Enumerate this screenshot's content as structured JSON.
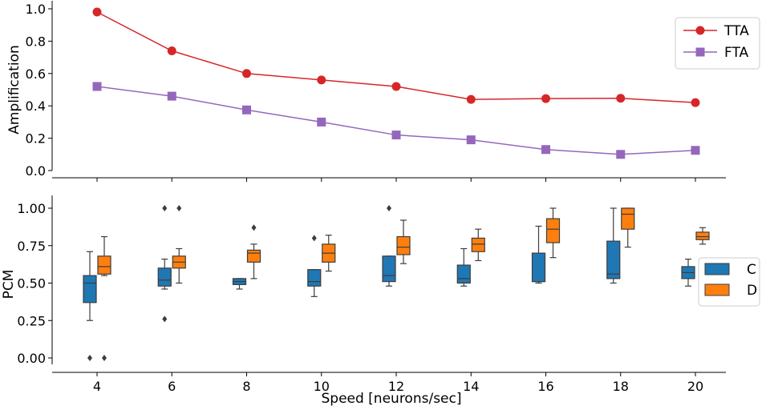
{
  "chart_data": [
    {
      "type": "line",
      "ylabel": "Amplification",
      "xlabel": "",
      "ylim": [
        0.0,
        1.0
      ],
      "yticks": [
        "0.0",
        "0.2",
        "0.4",
        "0.6",
        "0.8",
        "1.0"
      ],
      "x": [
        4,
        6,
        8,
        10,
        12,
        14,
        16,
        18,
        20
      ],
      "series": [
        {
          "name": "TTA",
          "marker": "circle",
          "color": "#d62728",
          "values": [
            0.98,
            0.74,
            0.6,
            0.56,
            0.52,
            0.44,
            0.445,
            0.447,
            0.42
          ]
        },
        {
          "name": "FTA",
          "marker": "square",
          "color": "#9467bd",
          "values": [
            0.52,
            0.46,
            0.375,
            0.3,
            0.22,
            0.19,
            0.13,
            0.1,
            0.125
          ]
        }
      ],
      "legend": "top-right"
    },
    {
      "type": "box",
      "ylabel": "PCM",
      "xlabel": "Speed [neurons/sec]",
      "ylim": [
        -0.05,
        1.08
      ],
      "yticks": [
        "0.00",
        "0.25",
        "0.50",
        "0.75",
        "1.00"
      ],
      "categories": [
        "4",
        "6",
        "8",
        "10",
        "12",
        "14",
        "16",
        "18",
        "20"
      ],
      "series": [
        {
          "name": "C",
          "color": "#1f77b4",
          "boxes": [
            {
              "whislo": 0.25,
              "q1": 0.37,
              "med": 0.5,
              "q3": 0.55,
              "whishi": 0.71,
              "fliers": [
                0.0
              ]
            },
            {
              "whislo": 0.46,
              "q1": 0.48,
              "med": 0.52,
              "q3": 0.6,
              "whishi": 0.66,
              "fliers": [
                1.0,
                0.26
              ]
            },
            {
              "whislo": 0.46,
              "q1": 0.49,
              "med": 0.51,
              "q3": 0.53,
              "whishi": 0.53,
              "fliers": []
            },
            {
              "whislo": 0.41,
              "q1": 0.48,
              "med": 0.51,
              "q3": 0.59,
              "whishi": 0.59,
              "fliers": [
                0.8
              ]
            },
            {
              "whislo": 0.48,
              "q1": 0.51,
              "med": 0.55,
              "q3": 0.68,
              "whishi": 0.68,
              "fliers": [
                1.0
              ]
            },
            {
              "whislo": 0.48,
              "q1": 0.5,
              "med": 0.53,
              "q3": 0.62,
              "whishi": 0.73,
              "fliers": []
            },
            {
              "whislo": 0.5,
              "q1": 0.51,
              "med": 0.51,
              "q3": 0.7,
              "whishi": 0.88,
              "fliers": []
            },
            {
              "whislo": 0.5,
              "q1": 0.53,
              "med": 0.56,
              "q3": 0.78,
              "whishi": 1.0,
              "fliers": []
            },
            {
              "whislo": 0.48,
              "q1": 0.53,
              "med": 0.57,
              "q3": 0.61,
              "whishi": 0.66,
              "fliers": []
            }
          ]
        },
        {
          "name": "D",
          "color": "#ff7f0e",
          "boxes": [
            {
              "whislo": 0.55,
              "q1": 0.56,
              "med": 0.61,
              "q3": 0.68,
              "whishi": 0.81,
              "fliers": [
                0.0
              ]
            },
            {
              "whislo": 0.5,
              "q1": 0.6,
              "med": 0.64,
              "q3": 0.68,
              "whishi": 0.73,
              "fliers": [
                1.0
              ]
            },
            {
              "whislo": 0.53,
              "q1": 0.64,
              "med": 0.7,
              "q3": 0.72,
              "whishi": 0.76,
              "fliers": [
                0.87
              ]
            },
            {
              "whislo": 0.58,
              "q1": 0.64,
              "med": 0.7,
              "q3": 0.76,
              "whishi": 0.82,
              "fliers": []
            },
            {
              "whislo": 0.63,
              "q1": 0.69,
              "med": 0.74,
              "q3": 0.81,
              "whishi": 0.92,
              "fliers": []
            },
            {
              "whislo": 0.65,
              "q1": 0.71,
              "med": 0.76,
              "q3": 0.8,
              "whishi": 0.86,
              "fliers": []
            },
            {
              "whislo": 0.67,
              "q1": 0.77,
              "med": 0.86,
              "q3": 0.93,
              "whishi": 1.0,
              "fliers": []
            },
            {
              "whislo": 0.74,
              "q1": 0.86,
              "med": 0.96,
              "q3": 1.0,
              "whishi": 1.0,
              "fliers": []
            },
            {
              "whislo": 0.76,
              "q1": 0.79,
              "med": 0.81,
              "q3": 0.84,
              "whishi": 0.87,
              "fliers": []
            }
          ]
        }
      ],
      "legend": "center-right"
    }
  ]
}
